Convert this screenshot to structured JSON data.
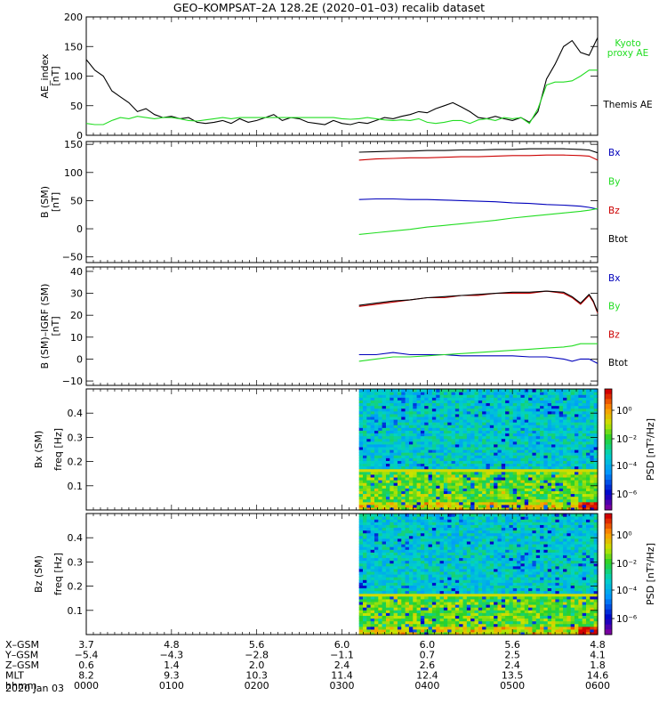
{
  "title": "GEO–KOMPSAT–2A 128.2E (2020–01–03) recalib dataset",
  "date_label": "2020 Jan 03",
  "colors": {
    "black": "#000000",
    "green": "#22dd22",
    "red": "#cc0000",
    "blue": "#0000bb"
  },
  "chart_data": [
    {
      "type": "line",
      "ylabel": [
        "AE_index",
        "[nT]"
      ],
      "ylim": [
        0,
        200
      ],
      "yticks": [
        0,
        50,
        100,
        150,
        200
      ],
      "xlim": [
        0,
        6
      ],
      "legend": [
        {
          "text": "Kyoto",
          "color": "#22dd22"
        },
        {
          "text": "proxy AE",
          "color": "#22dd22"
        },
        {
          "text": "Themis AE",
          "color": "#000000"
        }
      ],
      "series": [
        {
          "color": "#000000",
          "x": [
            0,
            0.1,
            0.2,
            0.3,
            0.4,
            0.5,
            0.6,
            0.7,
            0.8,
            0.9,
            1.0,
            1.1,
            1.2,
            1.3,
            1.4,
            1.5,
            1.6,
            1.7,
            1.8,
            1.9,
            2.0,
            2.1,
            2.2,
            2.3,
            2.4,
            2.5,
            2.6,
            2.7,
            2.8,
            2.9,
            3.0,
            3.1,
            3.2,
            3.3,
            3.4,
            3.5,
            3.6,
            3.7,
            3.8,
            3.9,
            4.0,
            4.1,
            4.2,
            4.3,
            4.4,
            4.5,
            4.6,
            4.7,
            4.8,
            4.9,
            5.0,
            5.1,
            5.2,
            5.3,
            5.4,
            5.5,
            5.6,
            5.7,
            5.8,
            5.9,
            6.0
          ],
          "y": [
            128,
            110,
            100,
            75,
            65,
            55,
            40,
            45,
            35,
            30,
            32,
            28,
            30,
            22,
            20,
            22,
            25,
            20,
            28,
            22,
            25,
            30,
            35,
            25,
            30,
            28,
            22,
            20,
            18,
            25,
            20,
            18,
            22,
            20,
            25,
            30,
            28,
            32,
            35,
            40,
            38,
            45,
            50,
            55,
            48,
            40,
            30,
            28,
            32,
            28,
            25,
            30,
            22,
            40,
            95,
            120,
            150,
            160,
            140,
            135,
            165
          ]
        },
        {
          "color": "#22dd22",
          "x": [
            0,
            0.1,
            0.2,
            0.3,
            0.4,
            0.5,
            0.6,
            0.7,
            0.8,
            0.9,
            1.0,
            1.1,
            1.2,
            1.3,
            1.4,
            1.5,
            1.6,
            1.7,
            1.8,
            1.9,
            2.0,
            2.1,
            2.2,
            2.3,
            2.4,
            2.5,
            2.6,
            2.7,
            2.8,
            2.9,
            3.0,
            3.1,
            3.2,
            3.3,
            3.4,
            3.5,
            3.6,
            3.7,
            3.8,
            3.9,
            4.0,
            4.1,
            4.2,
            4.3,
            4.4,
            4.5,
            4.6,
            4.7,
            4.8,
            4.9,
            5.0,
            5.1,
            5.2,
            5.3,
            5.4,
            5.5,
            5.6,
            5.7,
            5.8,
            5.9,
            6.0
          ],
          "y": [
            20,
            18,
            18,
            25,
            30,
            28,
            32,
            30,
            28,
            30,
            30,
            28,
            25,
            24,
            26,
            28,
            30,
            28,
            30,
            30,
            30,
            30,
            30,
            30,
            30,
            30,
            30,
            30,
            30,
            30,
            28,
            27,
            28,
            30,
            28,
            26,
            25,
            26,
            25,
            28,
            22,
            20,
            22,
            25,
            25,
            20,
            26,
            28,
            25,
            30,
            28,
            30,
            20,
            45,
            85,
            90,
            90,
            92,
            100,
            110,
            110
          ]
        }
      ]
    },
    {
      "type": "line",
      "ylabel": [
        "B (SM)",
        "[nT]"
      ],
      "ylim": [
        -60,
        155
      ],
      "yticks": [
        -50,
        0,
        50,
        100,
        150
      ],
      "xlim": [
        0,
        6
      ],
      "legend": [
        {
          "text": "Bx",
          "color": "#0000bb"
        },
        {
          "text": "By",
          "color": "#22dd22"
        },
        {
          "text": "Bz",
          "color": "#cc0000"
        },
        {
          "text": "Btot",
          "color": "#000000"
        }
      ],
      "series": [
        {
          "color": "#000000",
          "x": [
            3.2,
            3.4,
            3.6,
            3.8,
            4.0,
            4.2,
            4.4,
            4.6,
            4.8,
            5.0,
            5.2,
            5.4,
            5.6,
            5.8,
            5.9,
            6.0
          ],
          "y": [
            136,
            137,
            138,
            138,
            139,
            139,
            140,
            140,
            141,
            141,
            142,
            142,
            142,
            141,
            140,
            135
          ]
        },
        {
          "color": "#cc0000",
          "x": [
            3.2,
            3.4,
            3.6,
            3.8,
            4.0,
            4.2,
            4.4,
            4.6,
            4.8,
            5.0,
            5.2,
            5.4,
            5.6,
            5.8,
            5.9,
            6.0
          ],
          "y": [
            122,
            124,
            125,
            126,
            126,
            127,
            128,
            128,
            129,
            130,
            130,
            131,
            131,
            130,
            129,
            122
          ]
        },
        {
          "color": "#0000bb",
          "x": [
            3.2,
            3.4,
            3.6,
            3.8,
            4.0,
            4.2,
            4.4,
            4.6,
            4.8,
            5.0,
            5.2,
            5.4,
            5.6,
            5.8,
            5.9,
            6.0
          ],
          "y": [
            52,
            53,
            53,
            52,
            52,
            51,
            50,
            49,
            48,
            46,
            45,
            43,
            42,
            40,
            38,
            35
          ]
        },
        {
          "color": "#22dd22",
          "x": [
            3.2,
            3.4,
            3.6,
            3.8,
            4.0,
            4.2,
            4.4,
            4.6,
            4.8,
            5.0,
            5.2,
            5.4,
            5.6,
            5.8,
            5.9,
            6.0
          ],
          "y": [
            -10,
            -7,
            -4,
            -1,
            3,
            6,
            9,
            12,
            15,
            19,
            22,
            25,
            28,
            31,
            33,
            36
          ]
        }
      ]
    },
    {
      "type": "line",
      "ylabel": [
        "B (SM)–IGRF (SM)",
        "[nT]"
      ],
      "ylim": [
        -12,
        42
      ],
      "yticks": [
        -10,
        0,
        10,
        20,
        30,
        40
      ],
      "xlim": [
        0,
        6
      ],
      "legend": [
        {
          "text": "Bx",
          "color": "#0000bb"
        },
        {
          "text": "By",
          "color": "#22dd22"
        },
        {
          "text": "Bz",
          "color": "#cc0000"
        },
        {
          "text": "Btot",
          "color": "#000000"
        }
      ],
      "series": [
        {
          "color": "#cc0000",
          "x": [
            3.2,
            3.4,
            3.6,
            3.8,
            4.0,
            4.2,
            4.4,
            4.6,
            4.8,
            5.0,
            5.2,
            5.4,
            5.6,
            5.7,
            5.8,
            5.9,
            5.95,
            6.0
          ],
          "y": [
            24,
            25,
            26,
            27,
            28,
            28,
            29,
            29,
            30,
            30,
            30,
            31,
            30,
            28,
            25,
            29,
            26,
            21
          ]
        },
        {
          "color": "#000000",
          "x": [
            3.2,
            3.4,
            3.6,
            3.8,
            4.0,
            4.2,
            4.4,
            4.6,
            4.8,
            5.0,
            5.2,
            5.4,
            5.6,
            5.7,
            5.8,
            5.9,
            5.95,
            6.0
          ],
          "y": [
            24.5,
            25.5,
            26.5,
            27,
            28,
            28.5,
            29,
            29.5,
            30,
            30.5,
            30.5,
            31,
            30.5,
            28.5,
            25.5,
            29.5,
            26.5,
            21.5
          ]
        },
        {
          "color": "#0000bb",
          "x": [
            3.2,
            3.4,
            3.6,
            3.8,
            4.0,
            4.2,
            4.4,
            4.6,
            4.8,
            5.0,
            5.2,
            5.4,
            5.6,
            5.7,
            5.8,
            5.9,
            6.0
          ],
          "y": [
            2,
            2,
            3,
            2,
            2,
            2,
            1.5,
            1.5,
            1.5,
            1.5,
            1,
            1,
            0,
            -1,
            0,
            0,
            -2
          ]
        },
        {
          "color": "#22dd22",
          "x": [
            3.2,
            3.4,
            3.6,
            3.8,
            4.0,
            4.2,
            4.4,
            4.6,
            4.8,
            5.0,
            5.2,
            5.4,
            5.6,
            5.7,
            5.8,
            5.9,
            6.0
          ],
          "y": [
            -1,
            0,
            1,
            1,
            1.5,
            2,
            2.5,
            3,
            3.5,
            4,
            4.5,
            5,
            5.5,
            6,
            7,
            7,
            7
          ]
        }
      ]
    },
    {
      "type": "heatmap",
      "ylabel": [
        "Bx (SM)",
        "freq [Hz]"
      ],
      "ylim": [
        0,
        0.5
      ],
      "yticks": [
        0.1,
        0.2,
        0.3,
        0.4
      ],
      "xlim": [
        0,
        6
      ],
      "data_x_range": [
        3.2,
        6.0
      ],
      "band_freq": 0.16,
      "colorbar": {
        "label": "PSD [nT²/Hz]",
        "ticks": [
          "10⁰",
          "10⁻²",
          "10⁻⁴",
          "10⁻⁶"
        ]
      }
    },
    {
      "type": "heatmap",
      "ylabel": [
        "Bz (SM)",
        "freq [Hz]"
      ],
      "ylim": [
        0,
        0.5
      ],
      "yticks": [
        0.1,
        0.2,
        0.3,
        0.4
      ],
      "xlim": [
        0,
        6
      ],
      "data_x_range": [
        3.2,
        6.0
      ],
      "band_freq": 0.16,
      "colorbar": {
        "label": "PSD [nT²/Hz]",
        "ticks": [
          "10⁰",
          "10⁻²",
          "10⁻⁴",
          "10⁻⁶"
        ]
      }
    }
  ],
  "ephemeris": {
    "rows": [
      {
        "label": "X–GSM",
        "values": [
          "3.7",
          "4.8",
          "5.6",
          "6.0",
          "6.0",
          "5.6",
          "4.8"
        ]
      },
      {
        "label": "Y–GSM",
        "values": [
          "−5.4",
          "−4.3",
          "−2.8",
          "−1.1",
          "0.7",
          "2.5",
          "4.1"
        ]
      },
      {
        "label": "Z–GSM",
        "values": [
          "0.6",
          "1.4",
          "2.0",
          "2.4",
          "2.6",
          "2.4",
          "1.8"
        ]
      },
      {
        "label": "MLT",
        "values": [
          "8.2",
          "9.3",
          "10.3",
          "11.4",
          "12.4",
          "13.5",
          "14.6"
        ]
      },
      {
        "label": "hhmm",
        "values": [
          "0000",
          "0100",
          "0200",
          "0300",
          "0400",
          "0500",
          "0600"
        ]
      }
    ]
  }
}
